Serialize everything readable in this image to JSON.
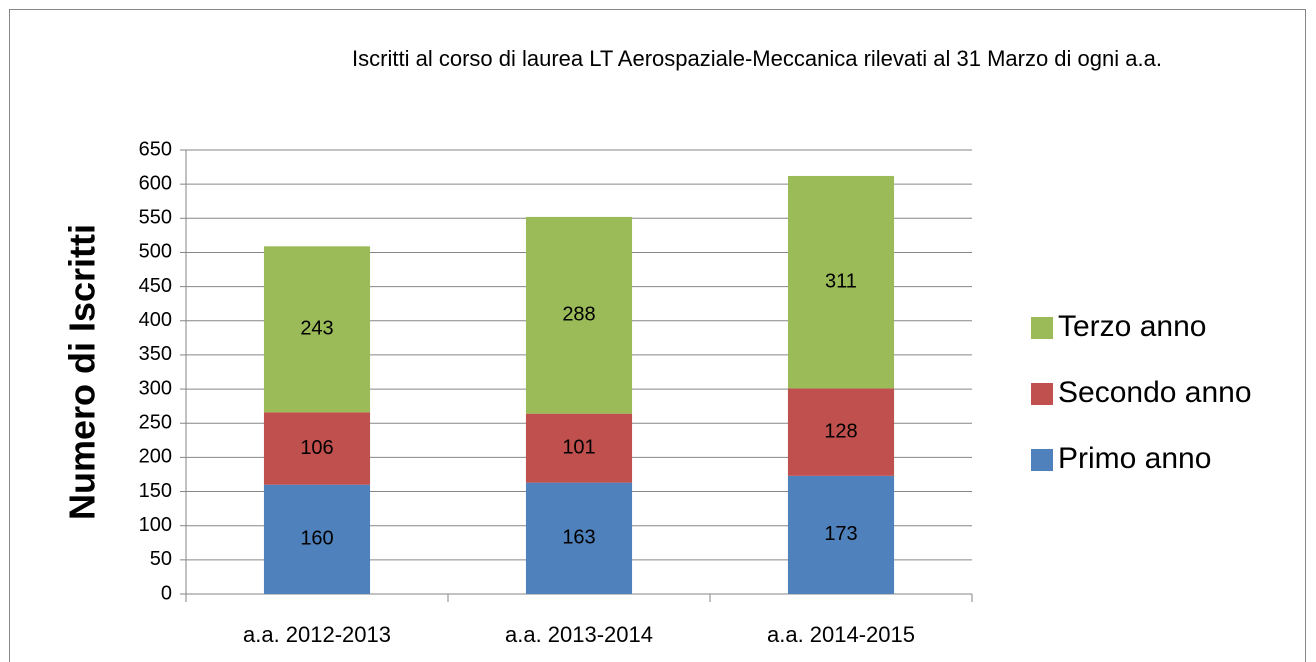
{
  "chart_data": {
    "type": "stacked-bar",
    "title": "Iscritti al corso di laurea LT Aerospaziale-Meccanica rilevati al 31 Marzo di ogni a.a.",
    "y_label": "Numero di Iscritti",
    "categories": [
      "a.a.  2012-2013",
      "a.a.  2013-2014",
      "a.a.  2014-2015"
    ],
    "series": [
      {
        "name": "Primo anno",
        "color": "#4f81bd",
        "values": [
          160,
          163,
          173
        ]
      },
      {
        "name": "Secondo anno",
        "color": "#c0504d",
        "values": [
          106,
          101,
          128
        ]
      },
      {
        "name": "Terzo anno",
        "color": "#9bbb59",
        "values": [
          243,
          288,
          311
        ]
      }
    ],
    "ylim": [
      0,
      650
    ],
    "yticks": [
      0,
      50,
      100,
      150,
      200,
      250,
      300,
      350,
      400,
      450,
      500,
      550,
      600,
      650
    ],
    "grid": true,
    "legend": "right"
  }
}
